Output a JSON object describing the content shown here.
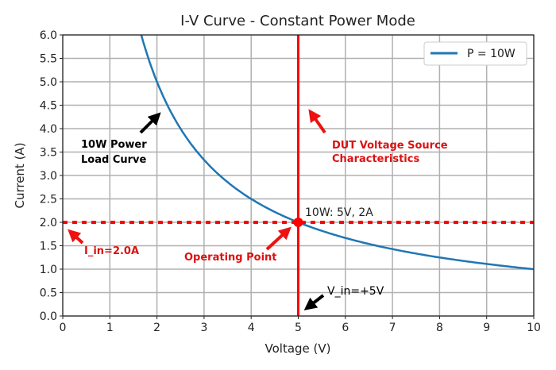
{
  "chart_data": {
    "type": "line",
    "title": "I-V Curve - Constant Power Mode",
    "xlabel": "Voltage (V)",
    "ylabel": "Current (A)",
    "xlim": [
      0,
      10
    ],
    "ylim": [
      0,
      6
    ],
    "xticks": [
      "0",
      "1",
      "2",
      "3",
      "4",
      "5",
      "6",
      "7",
      "8",
      "9",
      "10"
    ],
    "yticks": [
      "0.0",
      "0.5",
      "1.0",
      "1.5",
      "2.0",
      "2.5",
      "3.0",
      "3.5",
      "4.0",
      "4.5",
      "5.0",
      "5.5",
      "6.0"
    ],
    "grid": true,
    "legend_position": "top-right",
    "series": [
      {
        "name": "P = 10W",
        "function": "I = 10 / V",
        "x_range": [
          1.667,
          10
        ],
        "color": "#1f77b4"
      }
    ],
    "vertical_line": {
      "x": 5,
      "color": "#ff0000"
    },
    "horizontal_line": {
      "y": 2.0,
      "style": "dotted",
      "color": "#ff0000"
    },
    "operating_point": {
      "x": 5,
      "y": 2,
      "label": "10W: 5V, 2A"
    },
    "annotations": [
      {
        "text": "10W Power\nLoad Curve",
        "color": "#000000"
      },
      {
        "text": "DUT Voltage Source\nCharacteristics",
        "color": "#dd1111"
      },
      {
        "text": "I_in=2.0A",
        "color": "#dd1111"
      },
      {
        "text": "Operating Point",
        "color": "#dd1111"
      },
      {
        "text": "V_in=+5V",
        "color": "#000000"
      }
    ]
  }
}
